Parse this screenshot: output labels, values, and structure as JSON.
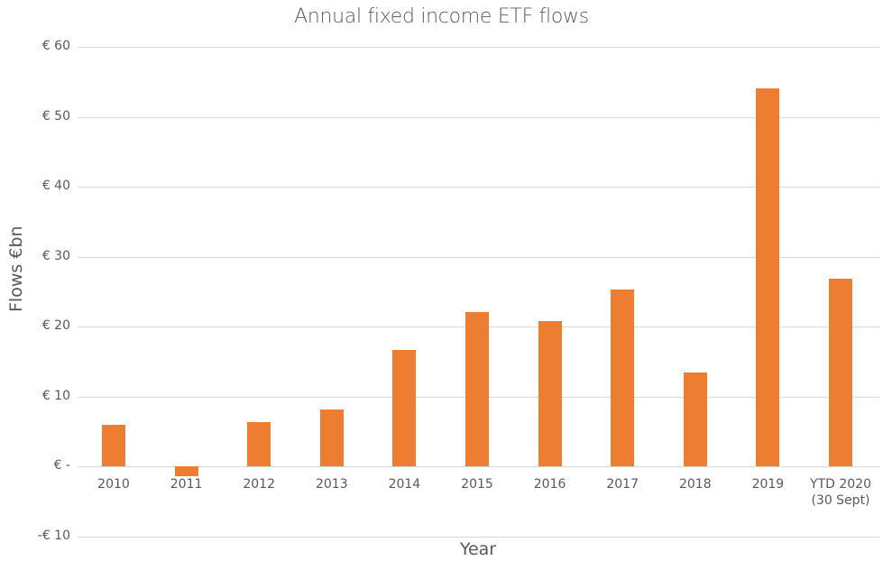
{
  "chart_data": {
    "type": "bar",
    "title": "Annual fixed income ETF flows",
    "xlabel": "Year",
    "ylabel": "Flows €bn",
    "ylim": [
      -10,
      60
    ],
    "grid": true,
    "legend": null,
    "yticks": [
      "€ 60",
      "€ 50",
      "€ 40",
      "€ 30",
      "€ 20",
      "€ 10",
      "€ -",
      "-€ 10"
    ],
    "ytick_values": [
      60,
      50,
      40,
      30,
      20,
      10,
      0,
      -10
    ],
    "categories": [
      "2010",
      "2011",
      "2012",
      "2013",
      "2014",
      "2015",
      "2016",
      "2017",
      "2018",
      "2019",
      "YTD 2020\n(30 Sept)"
    ],
    "values": [
      5.9,
      -1.4,
      6.3,
      8.1,
      16.6,
      22.1,
      20.8,
      25.3,
      13.4,
      54.1,
      26.8
    ],
    "bar_color": "#ed7d31"
  }
}
